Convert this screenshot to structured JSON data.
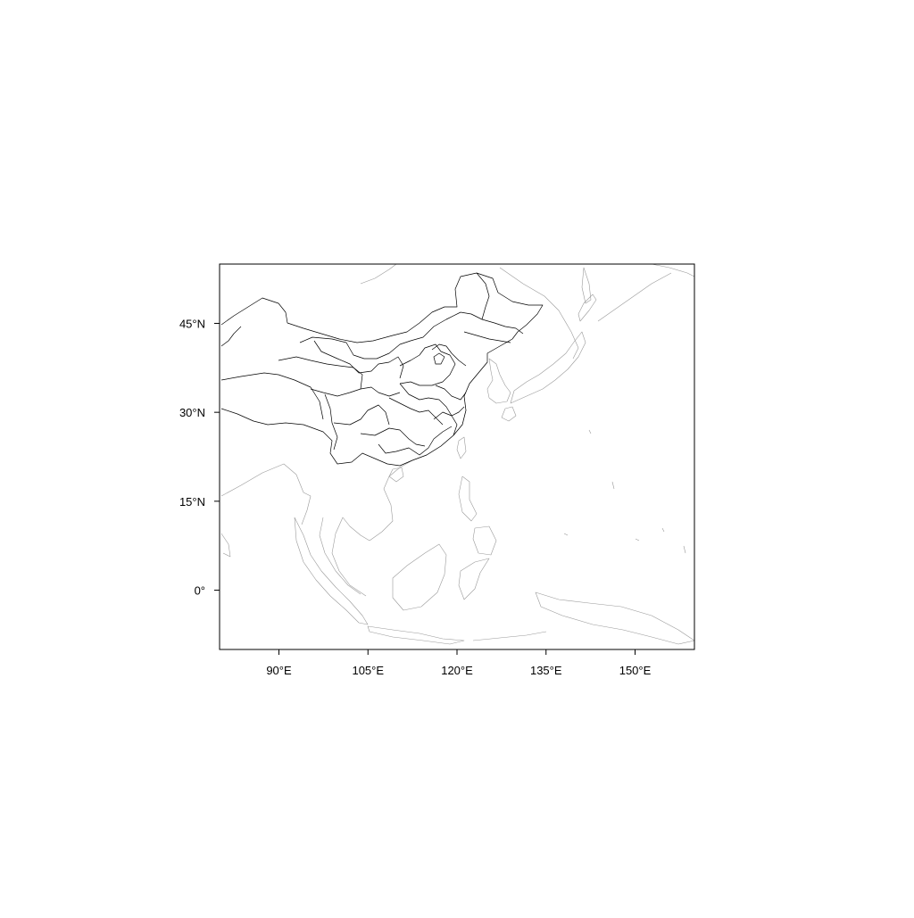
{
  "map": {
    "projection": "equirectangular",
    "lon_range": [
      80,
      160
    ],
    "lat_range": [
      -10,
      55
    ],
    "lon_ticks": [
      90,
      105,
      120,
      135,
      150
    ],
    "lat_ticks": [
      0,
      15,
      30,
      45
    ],
    "lon_tick_labels": [
      "90°E",
      "105°E",
      "120°E",
      "135°E",
      "150°E"
    ],
    "lat_tick_labels": [
      "0°",
      "15°N",
      "30°N",
      "45°N"
    ],
    "colors": {
      "frame": "#000000",
      "borders": "#000000",
      "coastlines": "#9a9a9a"
    },
    "layers": [
      "coastlines",
      "china-provincial-boundaries"
    ]
  }
}
